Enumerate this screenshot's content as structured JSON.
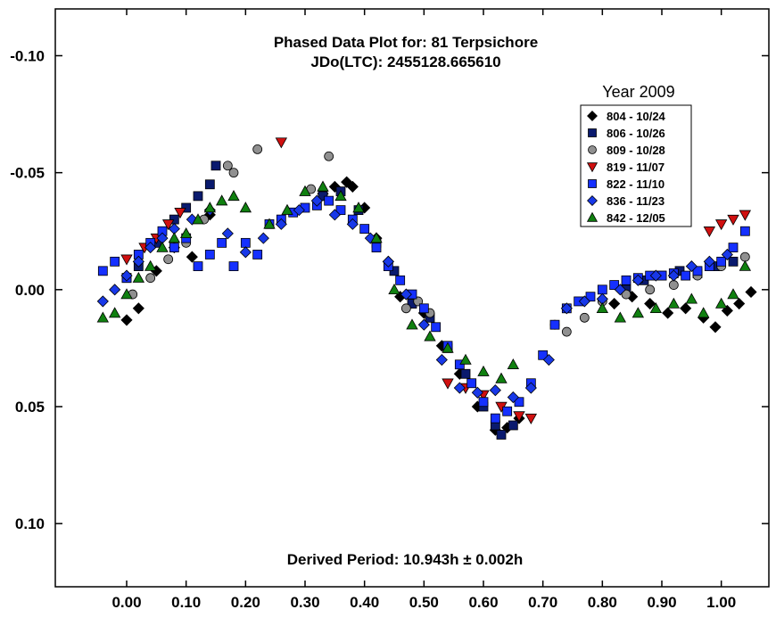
{
  "chart_data": {
    "type": "scatter",
    "title": "Phased Data Plot for: 81 Terpsichore",
    "subtitle": "JDo(LTC): 2455128.665610",
    "annotation": "Derived Period: 10.943h  ± 0.002h",
    "legend_title": "Year 2009",
    "legend_placement": "top-right",
    "xlim": [
      -0.12,
      1.08
    ],
    "ylim": [
      -0.12,
      0.127
    ],
    "y_inverted": true,
    "grid": false,
    "x_ticks": [
      "0.00",
      "0.10",
      "0.20",
      "0.30",
      "0.40",
      "0.50",
      "0.60",
      "0.70",
      "0.80",
      "0.90",
      "1.00"
    ],
    "x_tick_values": [
      0,
      0.1,
      0.2,
      0.3,
      0.4,
      0.5,
      0.6,
      0.7,
      0.8,
      0.9,
      1.0
    ],
    "y_ticks": [
      "-0.10",
      "-0.05",
      "0.00",
      "0.05",
      "0.10"
    ],
    "y_tick_values": [
      -0.1,
      -0.05,
      0.0,
      0.05,
      0.1
    ],
    "series": [
      {
        "name": "804 - 10/24",
        "marker": "diamond",
        "color": "#000000",
        "x": [
          0.0,
          0.02,
          0.05,
          0.08,
          0.11,
          0.14,
          0.33,
          0.35,
          0.37,
          0.38,
          0.4,
          0.42,
          0.44,
          0.46,
          0.5,
          0.53,
          0.56,
          0.59,
          0.62,
          0.64,
          0.66,
          0.82,
          0.85,
          0.88,
          0.91,
          0.94,
          0.97,
          0.99,
          1.01,
          1.03,
          1.05
        ],
        "y": [
          0.013,
          0.008,
          -0.008,
          -0.018,
          -0.014,
          -0.032,
          -0.041,
          -0.044,
          -0.046,
          -0.044,
          -0.035,
          -0.022,
          -0.012,
          0.003,
          0.01,
          0.024,
          0.036,
          0.05,
          0.06,
          0.059,
          0.055,
          0.006,
          0.003,
          0.006,
          0.01,
          0.008,
          0.012,
          0.016,
          0.009,
          0.006,
          0.001
        ]
      },
      {
        "name": "806 - 10/26",
        "marker": "square",
        "color": "#0a1a6e",
        "x": [
          0.0,
          0.02,
          0.05,
          0.08,
          0.1,
          0.12,
          0.14,
          0.15,
          0.33,
          0.36,
          0.39,
          0.42,
          0.45,
          0.48,
          0.51,
          0.54,
          0.57,
          0.6,
          0.62,
          0.63,
          0.65,
          0.84,
          0.87,
          0.9,
          0.93,
          0.96,
          0.99,
          1.02
        ],
        "y": [
          -0.005,
          -0.01,
          -0.02,
          -0.03,
          -0.035,
          -0.04,
          -0.045,
          -0.053,
          -0.04,
          -0.042,
          -0.034,
          -0.02,
          -0.008,
          0.006,
          0.012,
          0.025,
          0.036,
          0.05,
          0.058,
          0.062,
          0.058,
          0.0,
          -0.004,
          -0.006,
          -0.008,
          -0.007,
          -0.01,
          -0.012
        ]
      },
      {
        "name": "809 - 10/28",
        "marker": "circle",
        "color": "#909090",
        "x": [
          0.01,
          0.04,
          0.07,
          0.1,
          0.13,
          0.17,
          0.18,
          0.22,
          0.31,
          0.34,
          0.47,
          0.49,
          0.51,
          0.72,
          0.74,
          0.77,
          0.8,
          0.84,
          0.88,
          0.92,
          0.96,
          1.0,
          1.04
        ],
        "y": [
          0.002,
          -0.005,
          -0.013,
          -0.02,
          -0.03,
          -0.053,
          -0.05,
          -0.06,
          -0.043,
          -0.057,
          0.008,
          0.005,
          0.01,
          0.015,
          0.018,
          0.012,
          0.005,
          0.002,
          0.0,
          -0.002,
          -0.006,
          -0.01,
          -0.014
        ]
      },
      {
        "name": "819 - 11/07",
        "marker": "triangle-down",
        "color": "#d01010",
        "x": [
          0.0,
          0.03,
          0.05,
          0.07,
          0.09,
          0.26,
          0.54,
          0.57,
          0.6,
          0.63,
          0.66,
          0.68,
          0.98,
          1.0,
          1.02,
          1.04
        ],
        "y": [
          -0.013,
          -0.018,
          -0.022,
          -0.028,
          -0.033,
          -0.063,
          0.04,
          0.042,
          0.045,
          0.05,
          0.054,
          0.055,
          -0.025,
          -0.028,
          -0.03,
          -0.032
        ]
      },
      {
        "name": "822 - 11/10",
        "marker": "square",
        "color": "#1530ff",
        "x": [
          -0.04,
          -0.02,
          0.0,
          0.02,
          0.04,
          0.06,
          0.08,
          0.1,
          0.12,
          0.14,
          0.16,
          0.18,
          0.2,
          0.22,
          0.24,
          0.26,
          0.28,
          0.3,
          0.32,
          0.34,
          0.36,
          0.38,
          0.4,
          0.42,
          0.44,
          0.46,
          0.48,
          0.5,
          0.52,
          0.54,
          0.56,
          0.58,
          0.6,
          0.62,
          0.64,
          0.66,
          0.68,
          0.7,
          0.72,
          0.74,
          0.76,
          0.78,
          0.8,
          0.82,
          0.84,
          0.86,
          0.88,
          0.9,
          0.92,
          0.94,
          0.96,
          0.98,
          1.0,
          1.02,
          1.04
        ],
        "y": [
          -0.008,
          -0.012,
          -0.005,
          -0.015,
          -0.02,
          -0.025,
          -0.018,
          -0.022,
          -0.01,
          -0.015,
          -0.02,
          -0.01,
          -0.02,
          -0.015,
          -0.028,
          -0.03,
          -0.033,
          -0.035,
          -0.036,
          -0.038,
          -0.034,
          -0.03,
          -0.026,
          -0.018,
          -0.01,
          -0.004,
          0.002,
          0.008,
          0.016,
          0.024,
          0.032,
          0.04,
          0.048,
          0.055,
          0.052,
          0.048,
          0.04,
          0.028,
          0.015,
          0.008,
          0.005,
          0.003,
          0.0,
          -0.002,
          -0.004,
          -0.005,
          -0.006,
          -0.006,
          -0.007,
          -0.006,
          -0.008,
          -0.01,
          -0.012,
          -0.018,
          -0.025
        ]
      },
      {
        "name": "836 - 11/23",
        "marker": "diamond",
        "color": "#1838e8",
        "x": [
          -0.04,
          -0.02,
          0.0,
          0.02,
          0.04,
          0.06,
          0.08,
          0.11,
          0.14,
          0.17,
          0.2,
          0.23,
          0.26,
          0.29,
          0.32,
          0.35,
          0.38,
          0.41,
          0.44,
          0.47,
          0.5,
          0.53,
          0.56,
          0.59,
          0.62,
          0.65,
          0.68,
          0.71,
          0.74,
          0.77,
          0.8,
          0.83,
          0.86,
          0.89,
          0.92,
          0.95,
          0.98,
          1.01
        ],
        "y": [
          0.005,
          0.0,
          -0.006,
          -0.012,
          -0.018,
          -0.022,
          -0.026,
          -0.03,
          -0.034,
          -0.024,
          -0.016,
          -0.022,
          -0.028,
          -0.034,
          -0.038,
          -0.032,
          -0.028,
          -0.022,
          -0.012,
          0.002,
          0.015,
          0.03,
          0.042,
          0.044,
          0.043,
          0.046,
          0.042,
          0.03,
          0.008,
          0.005,
          0.004,
          0.0,
          -0.004,
          -0.006,
          -0.006,
          -0.01,
          -0.012,
          -0.015
        ]
      },
      {
        "name": "842 - 12/05",
        "marker": "triangle-up",
        "color": "#108010",
        "x": [
          -0.04,
          -0.02,
          0.0,
          0.02,
          0.04,
          0.06,
          0.08,
          0.1,
          0.12,
          0.14,
          0.16,
          0.18,
          0.2,
          0.24,
          0.27,
          0.3,
          0.33,
          0.36,
          0.39,
          0.42,
          0.45,
          0.48,
          0.51,
          0.54,
          0.57,
          0.6,
          0.63,
          0.65,
          0.8,
          0.83,
          0.86,
          0.89,
          0.92,
          0.95,
          0.97,
          1.0,
          1.02,
          1.04
        ],
        "y": [
          0.012,
          0.01,
          0.002,
          -0.005,
          -0.01,
          -0.018,
          -0.022,
          -0.024,
          -0.03,
          -0.035,
          -0.038,
          -0.04,
          -0.035,
          -0.028,
          -0.034,
          -0.042,
          -0.044,
          -0.04,
          -0.035,
          -0.022,
          0.0,
          0.015,
          0.02,
          0.025,
          0.03,
          0.035,
          0.038,
          0.032,
          0.008,
          0.012,
          0.01,
          0.008,
          0.006,
          0.004,
          0.01,
          0.006,
          0.002,
          -0.01
        ]
      }
    ]
  }
}
